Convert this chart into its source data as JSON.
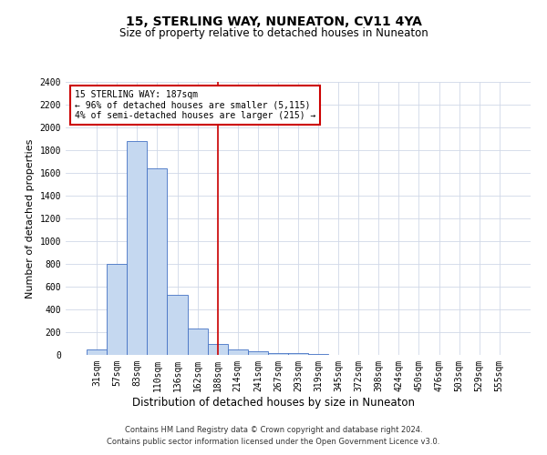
{
  "title": "15, STERLING WAY, NUNEATON, CV11 4YA",
  "subtitle": "Size of property relative to detached houses in Nuneaton",
  "xlabel": "Distribution of detached houses by size in Nuneaton",
  "ylabel": "Number of detached properties",
  "categories": [
    "31sqm",
    "57sqm",
    "83sqm",
    "110sqm",
    "136sqm",
    "162sqm",
    "188sqm",
    "214sqm",
    "241sqm",
    "267sqm",
    "293sqm",
    "319sqm",
    "345sqm",
    "372sqm",
    "398sqm",
    "424sqm",
    "450sqm",
    "476sqm",
    "503sqm",
    "529sqm",
    "555sqm"
  ],
  "values": [
    50,
    800,
    1880,
    1640,
    530,
    235,
    100,
    50,
    30,
    20,
    15,
    5,
    3,
    2,
    2,
    1,
    1,
    1,
    1,
    0,
    0
  ],
  "bar_color": "#c5d8f0",
  "bar_edge_color": "#4472c4",
  "highlight_index": 6,
  "highlight_line_color": "#cc0000",
  "annotation_line1": "15 STERLING WAY: 187sqm",
  "annotation_line2": "← 96% of detached houses are smaller (5,115)",
  "annotation_line3": "4% of semi-detached houses are larger (215) →",
  "annotation_box_color": "#cc0000",
  "ylim": [
    0,
    2400
  ],
  "yticks": [
    0,
    200,
    400,
    600,
    800,
    1000,
    1200,
    1400,
    1600,
    1800,
    2000,
    2200,
    2400
  ],
  "footer_line1": "Contains HM Land Registry data © Crown copyright and database right 2024.",
  "footer_line2": "Contains public sector information licensed under the Open Government Licence v3.0.",
  "bg_color": "#ffffff",
  "grid_color": "#d0d8e8",
  "title_fontsize": 10,
  "subtitle_fontsize": 8.5,
  "ylabel_fontsize": 8,
  "xlabel_fontsize": 8.5,
  "tick_fontsize": 7,
  "footer_fontsize": 6
}
